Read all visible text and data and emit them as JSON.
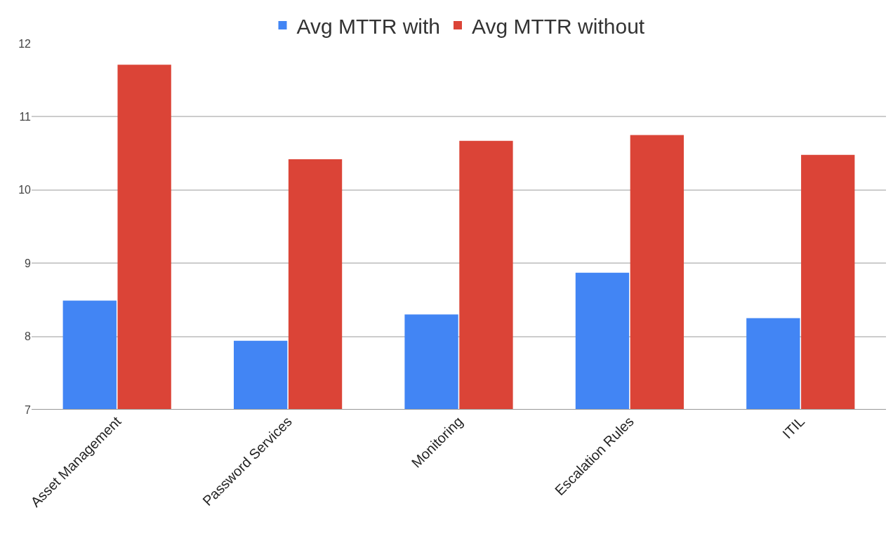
{
  "chart_data": {
    "type": "bar",
    "categories": [
      "Asset Management",
      "Password Services",
      "Monitoring",
      "Escalation Rules",
      "ITIL"
    ],
    "series": [
      {
        "name": "Avg MTTR with",
        "color": "#4285f4",
        "values": [
          8.49,
          7.94,
          8.3,
          8.87,
          8.25
        ]
      },
      {
        "name": "Avg MTTR without",
        "color": "#db4437",
        "values": [
          11.71,
          10.42,
          10.67,
          10.75,
          10.48
        ]
      }
    ],
    "ylim": [
      7,
      12
    ],
    "yticks": [
      7,
      8,
      9,
      10,
      11,
      12
    ],
    "grid": "y",
    "legend": "top"
  }
}
